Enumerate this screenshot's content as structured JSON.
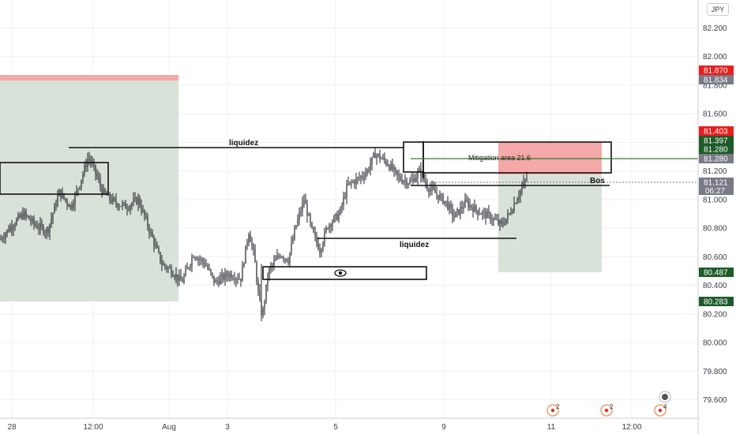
{
  "currency_badge": "JPY",
  "colors": {
    "candle": "#1e2028",
    "zone_green": "#d9e2d9",
    "zone_red": "#f4a8a8",
    "tag_red": "#e91e1e",
    "tag_green": "#1e5b2a",
    "tag_gray": "#787b86",
    "green_line": "#2e7d32"
  },
  "chart_data": {
    "type": "candlestick",
    "y_ticks": [
      79.6,
      79.8,
      80.0,
      80.2,
      80.4,
      80.6,
      80.8,
      81.0,
      81.2,
      81.4,
      81.6,
      81.8,
      82.0,
      82.2
    ],
    "y_tick_labels": [
      "79.600",
      "79.800",
      "80.000",
      "80.200",
      "80.400",
      "80.600",
      "80.800",
      "81.000",
      "81.200",
      "81.400",
      "81.600",
      "81.800",
      "82.000",
      "82.200"
    ],
    "ylim": [
      79.46,
      82.34
    ],
    "x_labels": [
      "28",
      "12:00",
      "Aug",
      "3",
      "5",
      "9",
      "11",
      "12:00"
    ],
    "price_tags": [
      {
        "label": "81.870",
        "color": "red",
        "value": 81.87
      },
      {
        "label": "81.834",
        "color": "gray",
        "value": 81.834
      },
      {
        "label": "81.403",
        "color": "red",
        "value": 81.403
      },
      {
        "label": "81.397",
        "color": "green",
        "value": 81.397
      },
      {
        "label": "81.280",
        "color": "green",
        "value": 81.28
      },
      {
        "label": "81.280",
        "color": "gray",
        "value": 81.28
      },
      {
        "label": "81.121",
        "sub": "06:27",
        "color": "gray",
        "value": 81.121
      },
      {
        "label": "80.487",
        "color": "green",
        "value": 80.487
      },
      {
        "label": "80.283",
        "color": "green",
        "value": 80.283
      }
    ],
    "annotations": [
      {
        "text": "liquidez",
        "value": 81.41
      },
      {
        "text": "liquidez",
        "value": 80.68
      },
      {
        "text": "Bos",
        "value": 81.17
      },
      {
        "text": "Mitigation area 21.6",
        "value": 81.29
      }
    ],
    "event_markers": [
      "2",
      "2",
      "4"
    ],
    "close_price": 81.121
  }
}
